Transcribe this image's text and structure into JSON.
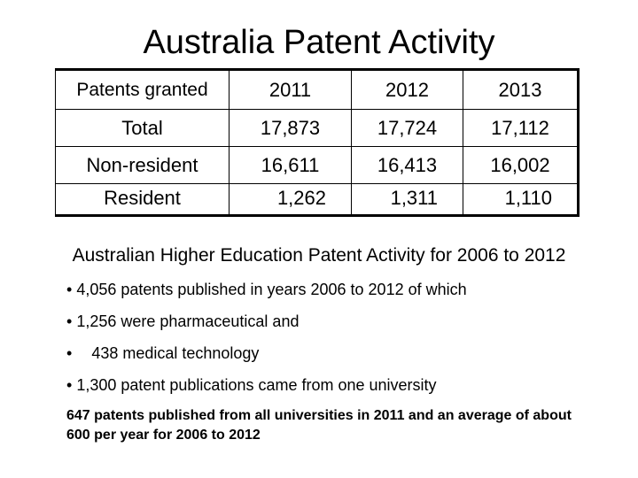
{
  "title": "Australia Patent Activity",
  "table": {
    "headers": [
      "Patents granted",
      "2011",
      "2012",
      "2013"
    ],
    "rows": [
      [
        "Total",
        "17,873",
        "17,724",
        "17,112"
      ],
      [
        "Non-resident",
        "16,611",
        "16,413",
        "16,002"
      ],
      [
        "Resident",
        "1,262",
        "1,311",
        "1,110"
      ]
    ]
  },
  "subtitle": "Australian Higher Education Patent Activity for 2006 to 2012",
  "bullets": [
    "4,056 patents published in years 2006 to 2012 of which",
    "1,256 were pharmaceutical and",
    "438 medical technology",
    "1,300 patent publications came from one university"
  ],
  "bullet_symbol": "•",
  "note": "647 patents published from all universities in 2011 and an average of about 600 per year for 2006 to 2012"
}
